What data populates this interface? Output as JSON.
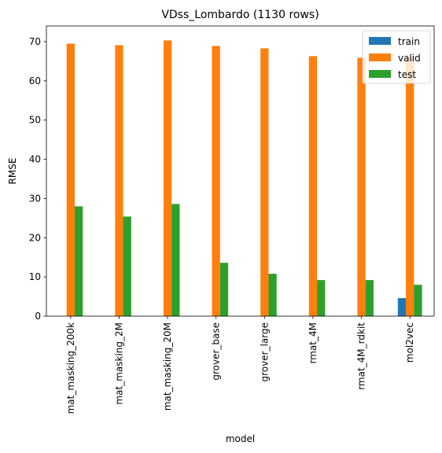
{
  "chart_data": {
    "type": "bar",
    "title": "VDss_Lombardo (1130 rows)",
    "xlabel": "model",
    "ylabel": "RMSE",
    "ylim": [
      0,
      74
    ],
    "yticks": [
      0,
      10,
      20,
      30,
      40,
      50,
      60,
      70
    ],
    "grid": false,
    "legend_position": "top-right",
    "categories": [
      "mat_masking_200k",
      "mat_masking_2M",
      "mat_masking_20M",
      "grover_base",
      "grover_large",
      "rmat_4M",
      "rmat_4M_rdkit",
      "mol2vec"
    ],
    "series": [
      {
        "name": "train",
        "color": "#1f77b4",
        "values": [
          0,
          0,
          0,
          0,
          0,
          0,
          0,
          4.6
        ]
      },
      {
        "name": "valid",
        "color": "#ff7f0e",
        "values": [
          69.5,
          69.1,
          70.3,
          68.9,
          68.3,
          66.3,
          65.9,
          66.0
        ]
      },
      {
        "name": "test",
        "color": "#2ca02c",
        "values": [
          28.0,
          25.4,
          28.6,
          13.6,
          10.8,
          9.2,
          9.2,
          8.0
        ]
      }
    ]
  }
}
